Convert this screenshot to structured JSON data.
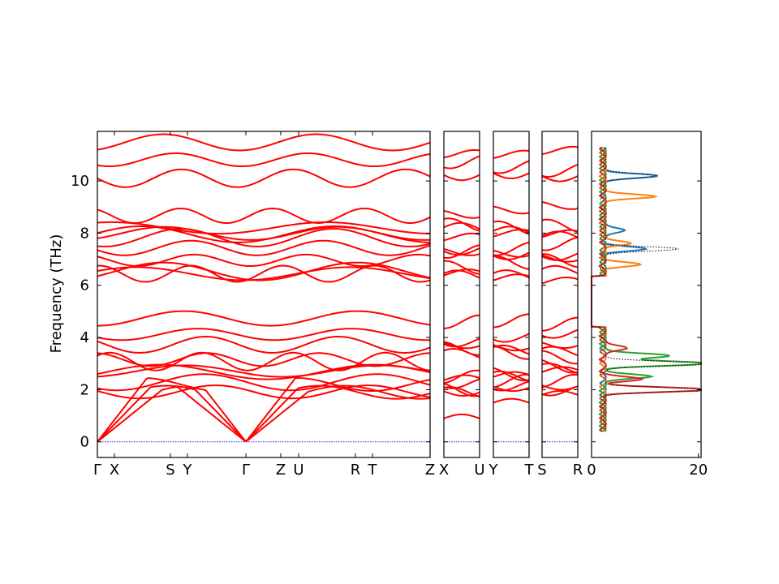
{
  "chart_data": {
    "type": "line",
    "ylabel": "Frequency (THz)",
    "ylim": [
      -0.6,
      11.9
    ],
    "yticks": [
      0,
      2,
      4,
      6,
      8,
      10
    ],
    "band_color": "#ff0000",
    "zero_line_color": "#1a1aff",
    "segments": [
      {
        "labels": [
          "Γ",
          "X",
          "S",
          "Y",
          "Γ",
          "Z",
          "U",
          "R",
          "T",
          "Z"
        ]
      },
      {
        "labels": [
          "X",
          "U"
        ]
      },
      {
        "labels": [
          "Y",
          "T"
        ]
      },
      {
        "labels": [
          "S",
          "R"
        ]
      }
    ],
    "bands_gamma": [
      0,
      0,
      0,
      1.95,
      2.05,
      2.5,
      2.6,
      3.3,
      3.4,
      3.85,
      4.0,
      4.45,
      6.35,
      6.55,
      6.75,
      7.1,
      7.35,
      7.5,
      7.8,
      8.0,
      8.4,
      8.9,
      10.1,
      10.6,
      11.2
    ],
    "dos": {
      "xlim": [
        0,
        20.5
      ],
      "xticks": [
        0,
        20
      ],
      "series": [
        {
          "color": "#1f77b4",
          "peaks": [
            [
              10.2,
              10.0
            ],
            [
              7.4,
              7.5
            ],
            [
              8.1,
              4.5
            ]
          ]
        },
        {
          "color": "#ff7f0e",
          "peaks": [
            [
              9.4,
              9.5
            ],
            [
              6.8,
              6.5
            ],
            [
              7.6,
              5.0
            ]
          ]
        },
        {
          "color": "#2ca02c",
          "peaks": [
            [
              3.0,
              20.0
            ],
            [
              3.3,
              13.0
            ],
            [
              2.5,
              9.0
            ]
          ]
        },
        {
          "color": "#d62728",
          "peaks": [
            [
              2.0,
              19.5
            ],
            [
              2.4,
              7.0
            ],
            [
              3.6,
              5.0
            ]
          ]
        },
        {
          "color": "#000000",
          "dotted": true,
          "peaks": [
            [
              2.0,
              20.0
            ],
            [
              3.0,
              20.0
            ],
            [
              10.2,
              10.5
            ],
            [
              7.4,
              14.0
            ]
          ]
        }
      ]
    }
  }
}
